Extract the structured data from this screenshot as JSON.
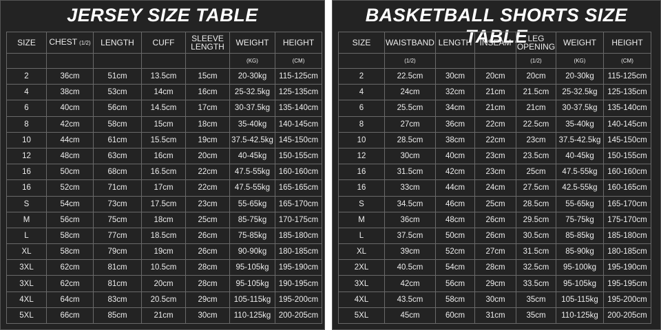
{
  "tables": [
    {
      "title": "JERSEY SIZE TABLE",
      "headers": [
        {
          "label": "SIZE"
        },
        {
          "label": "CHEST",
          "note": "(1/2)"
        },
        {
          "label": "LENGTH"
        },
        {
          "label": "CUFF"
        },
        {
          "label": "SLEEVE LENGTH"
        },
        {
          "label": "WEIGHT"
        },
        {
          "label": "HEIGHT"
        }
      ],
      "units": [
        null,
        null,
        null,
        null,
        null,
        "(KG)",
        "(CM)"
      ],
      "rows": [
        [
          "2",
          "36cm",
          "51cm",
          "13.5cm",
          "15cm",
          "20-30kg",
          "115-125cm"
        ],
        [
          "4",
          "38cm",
          "53cm",
          "14cm",
          "16cm",
          "25-32.5kg",
          "125-135cm"
        ],
        [
          "6",
          "40cm",
          "56cm",
          "14.5cm",
          "17cm",
          "30-37.5kg",
          "135-140cm"
        ],
        [
          "8",
          "42cm",
          "58cm",
          "15cm",
          "18cm",
          "35-40kg",
          "140-145cm"
        ],
        [
          "10",
          "44cm",
          "61cm",
          "15.5cm",
          "19cm",
          "37.5-42.5kg",
          "145-150cm"
        ],
        [
          "12",
          "48cm",
          "63cm",
          "16cm",
          "20cm",
          "40-45kg",
          "150-155cm"
        ],
        [
          "16",
          "50cm",
          "68cm",
          "16.5cm",
          "22cm",
          "47.5-55kg",
          "160-160cm"
        ],
        [
          "16",
          "52cm",
          "71cm",
          "17cm",
          "22cm",
          "47.5-55kg",
          "165-165cm"
        ],
        [
          "S",
          "54cm",
          "73cm",
          "17.5cm",
          "23cm",
          "55-65kg",
          "165-170cm"
        ],
        [
          "M",
          "56cm",
          "75cm",
          "18cm",
          "25cm",
          "85-75kg",
          "170-175cm"
        ],
        [
          "L",
          "58cm",
          "77cm",
          "18.5cm",
          "26cm",
          "75-85kg",
          "185-180cm"
        ],
        [
          "XL",
          "58cm",
          "79cm",
          "19cm",
          "26cm",
          "90-90kg",
          "180-185cm"
        ],
        [
          "3XL",
          "62cm",
          "81cm",
          "10.5cm",
          "28cm",
          "95-105kg",
          "195-190cm"
        ],
        [
          "3XL",
          "62cm",
          "81cm",
          "20cm",
          "28cm",
          "95-105kg",
          "190-195cm"
        ],
        [
          "4XL",
          "64cm",
          "83cm",
          "20.5cm",
          "29cm",
          "105-115kg",
          "195-200cm"
        ],
        [
          "5XL",
          "66cm",
          "85cm",
          "21cm",
          "30cm",
          "110-125kg",
          "200-205cm"
        ]
      ]
    },
    {
      "title": "BASKETBALL SHORTS SIZE TABLE",
      "headers": [
        {
          "label": "SIZE"
        },
        {
          "label": "WAISTBAND"
        },
        {
          "label": "LENGTH"
        },
        {
          "label": "INSEAM"
        },
        {
          "label": "LEG OPENING"
        },
        {
          "label": "WEIGHT"
        },
        {
          "label": "HEIGHT"
        }
      ],
      "units": [
        null,
        "(1/2)",
        null,
        null,
        "(1/2)",
        "(KG)",
        "(CM)"
      ],
      "rows": [
        [
          "2",
          "22.5cm",
          "30cm",
          "20cm",
          "20cm",
          "20-30kg",
          "115-125cm"
        ],
        [
          "4",
          "24cm",
          "32cm",
          "21cm",
          "21.5cm",
          "25-32.5kg",
          "125-135cm"
        ],
        [
          "6",
          "25.5cm",
          "34cm",
          "21cm",
          "21cm",
          "30-37.5kg",
          "135-140cm"
        ],
        [
          "8",
          "27cm",
          "36cm",
          "22cm",
          "22.5cm",
          "35-40kg",
          "140-145cm"
        ],
        [
          "10",
          "28.5cm",
          "38cm",
          "22cm",
          "23cm",
          "37.5-42.5kg",
          "145-150cm"
        ],
        [
          "12",
          "30cm",
          "40cm",
          "23cm",
          "23.5cm",
          "40-45kg",
          "150-155cm"
        ],
        [
          "16",
          "31.5cm",
          "42cm",
          "23cm",
          "25cm",
          "47.5-55kg",
          "160-160cm"
        ],
        [
          "16",
          "33cm",
          "44cm",
          "24cm",
          "27.5cm",
          "42.5-55kg",
          "160-165cm"
        ],
        [
          "S",
          "34.5cm",
          "46cm",
          "25cm",
          "28.5cm",
          "55-65kg",
          "165-170cm"
        ],
        [
          "M",
          "36cm",
          "48cm",
          "26cm",
          "29.5cm",
          "75-75kg",
          "175-170cm"
        ],
        [
          "L",
          "37.5cm",
          "50cm",
          "26cm",
          "30.5cm",
          "85-85kg",
          "185-180cm"
        ],
        [
          "XL",
          "39cm",
          "52cm",
          "27cm",
          "31.5cm",
          "85-90kg",
          "180-185cm"
        ],
        [
          "2XL",
          "40.5cm",
          "54cm",
          "28cm",
          "32.5cm",
          "95-100kg",
          "195-190cm"
        ],
        [
          "3XL",
          "42cm",
          "56cm",
          "29cm",
          "33.5cm",
          "95-105kg",
          "195-195cm"
        ],
        [
          "4XL",
          "43.5cm",
          "58cm",
          "30cm",
          "35cm",
          "105-115kg",
          "195-200cm"
        ],
        [
          "5XL",
          "45cm",
          "60cm",
          "31cm",
          "35cm",
          "110-125kg",
          "200-205cm"
        ]
      ]
    }
  ]
}
